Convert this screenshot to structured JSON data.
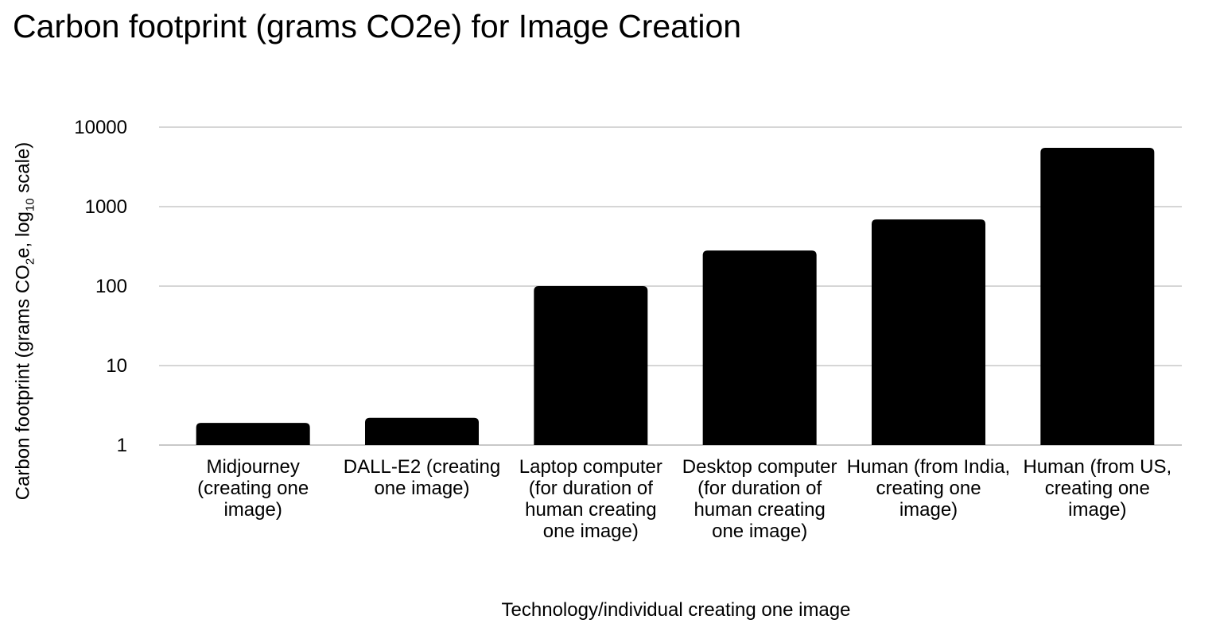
{
  "chart_data": {
    "type": "bar",
    "title": "Carbon footprint (grams CO2e) for Image Creation",
    "ylabel_parts": [
      "Carbon footprint (grams CO",
      "2",
      "e, log",
      "10",
      " scale)"
    ],
    "xlabel": "Technology/individual creating one image",
    "yscale": "log10",
    "ylim": [
      1,
      10000
    ],
    "yticks": [
      "1",
      "10",
      "100",
      "1000",
      "10000"
    ],
    "grid": true,
    "categories": [
      "Midjourney (creating one image)",
      "DALL-E2 (creating one image)",
      "Laptop computer (for duration of human creating one image)",
      "Desktop computer (for duration of human creating one image)",
      "Human (from India, creating one image)",
      "Human (from US, creating one image)"
    ],
    "values": [
      1.9,
      2.2,
      100,
      280,
      690,
      5500
    ],
    "bar_color": "#000000",
    "grid_color": "#c8c8c8"
  }
}
